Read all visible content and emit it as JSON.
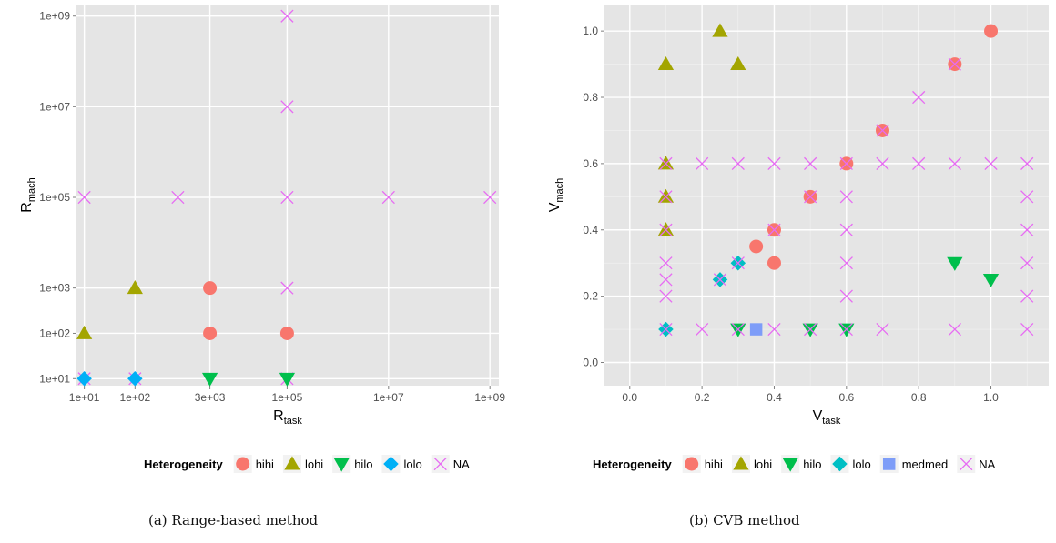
{
  "legend_title": "Heterogeneity",
  "captions": [
    "(a) Range-based method",
    "(b) CVB method"
  ],
  "colors": {
    "hihi": "#F8766D",
    "lohi": "#A3A500",
    "hilo": "#00BF4C",
    "lolo": "#00B0F6",
    "lolo_b": "#00BFC4",
    "medmed": "#7E9DF8",
    "NA": "#E76BF3"
  },
  "chart_data": [
    {
      "type": "scatter",
      "x_scale": "log10",
      "y_scale": "log10",
      "xlabel": "R",
      "xlabel_sub": "task",
      "ylabel": "R",
      "ylabel_sub": "mach",
      "xlim": [
        7,
        1500000000
      ],
      "ylim": [
        7,
        1800000000
      ],
      "x_ticks": [
        {
          "value": 10,
          "label": "1e+01"
        },
        {
          "value": 100,
          "label": "1e+02"
        },
        {
          "value": 3000,
          "label": "3e+03"
        },
        {
          "value": 100000,
          "label": "1e+05"
        },
        {
          "value": 10000000,
          "label": "1e+07"
        },
        {
          "value": 1000000000,
          "label": "1e+09"
        }
      ],
      "y_ticks": [
        {
          "value": 10,
          "label": "1e+01"
        },
        {
          "value": 100,
          "label": "1e+02"
        },
        {
          "value": 1000,
          "label": "1e+03"
        },
        {
          "value": 100000,
          "label": "1e+05"
        },
        {
          "value": 10000000,
          "label": "1e+07"
        },
        {
          "value": 1000000000,
          "label": "1e+09"
        }
      ],
      "grid": true,
      "legend_position": "bottom",
      "legend_items": [
        "hihi",
        "lohi",
        "hilo",
        "lolo",
        "NA"
      ],
      "series": [
        {
          "name": "NA",
          "shape": "cross",
          "color_key": "NA",
          "points": [
            [
              10,
              100000
            ],
            [
              10,
              10
            ],
            [
              100,
              10
            ],
            [
              700,
              100000
            ],
            [
              100000,
              1000000000
            ],
            [
              100000,
              10000000
            ],
            [
              100000,
              100000
            ],
            [
              100000,
              1000
            ],
            [
              100000,
              10
            ],
            [
              10000000,
              100000
            ],
            [
              1000000000,
              100000
            ]
          ]
        },
        {
          "name": "hihi",
          "shape": "circle",
          "color_key": "hihi",
          "points": [
            [
              3000,
              1000
            ],
            [
              3000,
              100
            ],
            [
              100000,
              100
            ]
          ]
        },
        {
          "name": "lohi",
          "shape": "triangle-up",
          "color_key": "lohi",
          "points": [
            [
              10,
              100
            ],
            [
              100,
              1000
            ]
          ]
        },
        {
          "name": "hilo",
          "shape": "triangle-down",
          "color_key": "hilo",
          "points": [
            [
              3000,
              10
            ],
            [
              100000,
              10
            ]
          ]
        },
        {
          "name": "lolo",
          "shape": "diamond",
          "color_key": "lolo",
          "points": [
            [
              10,
              10
            ],
            [
              100,
              10
            ]
          ]
        }
      ]
    },
    {
      "type": "scatter",
      "x_scale": "linear",
      "y_scale": "linear",
      "xlabel": "V",
      "xlabel_sub": "task",
      "ylabel": "V",
      "ylabel_sub": "mach",
      "xlim": [
        -0.07,
        1.16
      ],
      "ylim": [
        -0.07,
        1.08
      ],
      "x_ticks": [
        {
          "value": 0.0,
          "label": "0.0"
        },
        {
          "value": 0.2,
          "label": "0.2"
        },
        {
          "value": 0.4,
          "label": "0.4"
        },
        {
          "value": 0.6,
          "label": "0.6"
        },
        {
          "value": 0.8,
          "label": "0.8"
        },
        {
          "value": 1.0,
          "label": "1.0"
        }
      ],
      "y_ticks": [
        {
          "value": 0.0,
          "label": "0.0"
        },
        {
          "value": 0.2,
          "label": "0.2"
        },
        {
          "value": 0.4,
          "label": "0.4"
        },
        {
          "value": 0.6,
          "label": "0.6"
        },
        {
          "value": 0.8,
          "label": "0.8"
        },
        {
          "value": 1.0,
          "label": "1.0"
        }
      ],
      "grid": true,
      "legend_position": "bottom",
      "legend_items": [
        "hihi",
        "lohi",
        "hilo",
        "lolo",
        "medmed",
        "NA"
      ],
      "series": [
        {
          "name": "hihi",
          "shape": "circle",
          "color_key": "hihi",
          "points": [
            [
              1.0,
              1.0
            ],
            [
              0.9,
              0.9
            ],
            [
              0.7,
              0.7
            ],
            [
              0.6,
              0.6
            ],
            [
              0.5,
              0.5
            ],
            [
              0.4,
              0.4
            ],
            [
              0.35,
              0.35
            ],
            [
              0.4,
              0.3
            ]
          ]
        },
        {
          "name": "lohi",
          "shape": "triangle-up",
          "color_key": "lohi",
          "points": [
            [
              0.25,
              1.0
            ],
            [
              0.1,
              0.9
            ],
            [
              0.3,
              0.9
            ],
            [
              0.1,
              0.6
            ],
            [
              0.1,
              0.5
            ],
            [
              0.1,
              0.4
            ]
          ]
        },
        {
          "name": "hilo",
          "shape": "triangle-down",
          "color_key": "hilo",
          "points": [
            [
              0.9,
              0.3
            ],
            [
              1.0,
              0.25
            ],
            [
              0.3,
              0.1
            ],
            [
              0.5,
              0.1
            ],
            [
              0.6,
              0.1
            ]
          ]
        },
        {
          "name": "lolo",
          "shape": "diamond",
          "color_key": "lolo_b",
          "points": [
            [
              0.1,
              0.1
            ],
            [
              0.25,
              0.25
            ],
            [
              0.3,
              0.3
            ]
          ]
        },
        {
          "name": "medmed",
          "shape": "square",
          "color_key": "medmed",
          "points": [
            [
              0.35,
              0.1
            ]
          ]
        },
        {
          "name": "NA",
          "shape": "cross",
          "color_key": "NA",
          "points": [
            [
              0.8,
              0.8
            ],
            [
              0.9,
              0.9
            ],
            [
              0.7,
              0.7
            ],
            [
              0.6,
              0.6
            ],
            [
              0.5,
              0.5
            ],
            [
              0.4,
              0.4
            ],
            [
              0.3,
              0.3
            ],
            [
              0.25,
              0.25
            ],
            [
              0.1,
              0.6
            ],
            [
              0.2,
              0.6
            ],
            [
              0.3,
              0.6
            ],
            [
              0.4,
              0.6
            ],
            [
              0.5,
              0.6
            ],
            [
              0.7,
              0.6
            ],
            [
              0.8,
              0.6
            ],
            [
              0.9,
              0.6
            ],
            [
              1.0,
              0.6
            ],
            [
              1.1,
              0.6
            ],
            [
              0.1,
              0.5
            ],
            [
              0.1,
              0.4
            ],
            [
              0.1,
              0.3
            ],
            [
              0.1,
              0.25
            ],
            [
              0.1,
              0.2
            ],
            [
              0.1,
              0.1
            ],
            [
              0.2,
              0.1
            ],
            [
              0.3,
              0.1
            ],
            [
              0.4,
              0.1
            ],
            [
              0.5,
              0.1
            ],
            [
              0.6,
              0.1
            ],
            [
              0.7,
              0.1
            ],
            [
              0.9,
              0.1
            ],
            [
              1.1,
              0.1
            ],
            [
              0.6,
              0.5
            ],
            [
              0.6,
              0.4
            ],
            [
              0.6,
              0.3
            ],
            [
              0.6,
              0.2
            ],
            [
              1.1,
              0.5
            ],
            [
              1.1,
              0.4
            ],
            [
              1.1,
              0.3
            ],
            [
              1.1,
              0.2
            ]
          ]
        }
      ]
    }
  ]
}
